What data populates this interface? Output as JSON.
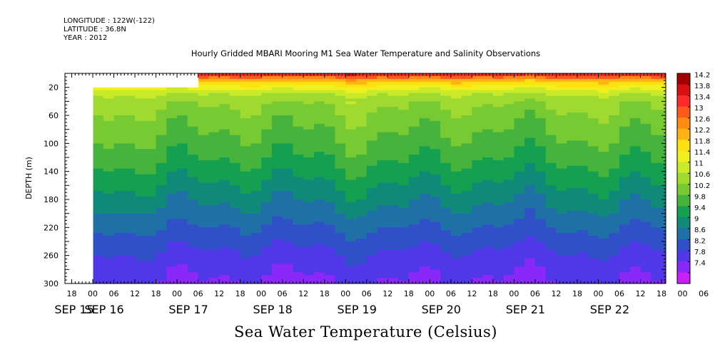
{
  "header": {
    "longitude": "LONGITUDE : 122W(-122)",
    "latitude": "LATITUDE : 36.8N",
    "year": "YEAR : 2012"
  },
  "chart_data": {
    "type": "heatmap",
    "title": "Hourly Gridded MBARI Mooring M1 Sea Water Temperature and Salinity Observations",
    "xlabel": "",
    "ylabel": "DEPTH (m)",
    "colorbar_label": "Sea Water Temperature (Celsius)",
    "y_axis": {
      "range": [
        0,
        300
      ],
      "inverted": true,
      "ticks": [
        20,
        60,
        100,
        140,
        180,
        220,
        260,
        300
      ]
    },
    "x_axis": {
      "range_hours_labels": [
        "18",
        "00",
        "06",
        "12",
        "18",
        "00",
        "06",
        "12",
        "18",
        "00",
        "06",
        "12",
        "18",
        "00",
        "06",
        "12",
        "18",
        "00",
        "06",
        "12",
        "18",
        "00",
        "06",
        "12",
        "18",
        "00",
        "06",
        "12",
        "18",
        "00",
        "06",
        "12",
        "18"
      ],
      "date_labels": [
        "SEP 15",
        "SEP 16",
        "SEP 17",
        "SEP 18",
        "SEP 19",
        "SEP 20",
        "SEP 21",
        "SEP 22"
      ]
    },
    "colorbar": {
      "levels": [
        "14.2",
        "13.8",
        "13.4",
        "13",
        "12.6",
        "12.2",
        "11.8",
        "11.4",
        "11",
        "10.6",
        "10.2",
        "9.8",
        "9.4",
        "9",
        "8.6",
        "8.2",
        "7.8",
        "7.4"
      ],
      "colors": [
        "#a00000",
        "#d81010",
        "#ff2a2a",
        "#ff5a1e",
        "#ff8c10",
        "#ffb414",
        "#ffe010",
        "#f0f020",
        "#c8ea28",
        "#a0da30",
        "#78ca32",
        "#46b43c",
        "#14a050",
        "#108a78",
        "#2070a8",
        "#3050c8",
        "#5038e8",
        "#8a28f8",
        "#c820f8"
      ]
    },
    "depth_profile": {
      "depths": [
        0,
        10,
        20,
        30,
        40,
        60,
        80,
        100,
        120,
        140,
        160,
        180,
        200,
        220,
        240,
        260,
        280,
        300
      ],
      "temperatures": [
        13.9,
        12.4,
        11.6,
        11.0,
        10.7,
        10.45,
        10.25,
        10.05,
        9.85,
        9.6,
        9.35,
        9.1,
        8.85,
        8.6,
        8.35,
        8.1,
        7.9,
        7.75
      ]
    },
    "missing_data": [
      {
        "x_hours_from": -6,
        "x_hours_to": 0,
        "depth_from": 0,
        "depth_to": 300
      },
      {
        "x_hours_from": 0,
        "x_hours_to": 30,
        "depth_from": 0,
        "depth_to": 20
      }
    ]
  }
}
